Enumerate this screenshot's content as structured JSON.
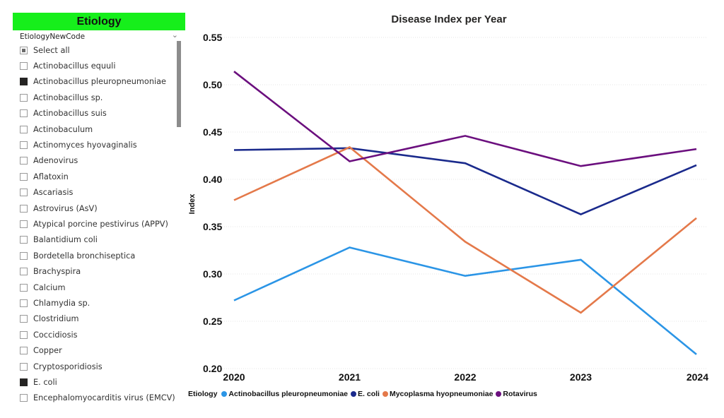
{
  "slicer": {
    "title": "Etiology",
    "field_name": "EtiologyNewCode",
    "expand_icon": "chevron-down-icon",
    "items": [
      {
        "label": "Select all",
        "state": "partial"
      },
      {
        "label": "Actinobacillus equuli",
        "state": "unchecked"
      },
      {
        "label": "Actinobacillus pleuropneumoniae",
        "state": "checked"
      },
      {
        "label": "Actinobacillus sp.",
        "state": "unchecked"
      },
      {
        "label": "Actinobacillus suis",
        "state": "unchecked"
      },
      {
        "label": "Actinobaculum",
        "state": "unchecked"
      },
      {
        "label": "Actinomyces hyovaginalis",
        "state": "unchecked"
      },
      {
        "label": "Adenovirus",
        "state": "unchecked"
      },
      {
        "label": "Aflatoxin",
        "state": "unchecked"
      },
      {
        "label": "Ascariasis",
        "state": "unchecked"
      },
      {
        "label": "Astrovirus (AsV)",
        "state": "unchecked"
      },
      {
        "label": "Atypical porcine pestivirus (APPV)",
        "state": "unchecked"
      },
      {
        "label": "Balantidium coli",
        "state": "unchecked"
      },
      {
        "label": "Bordetella bronchiseptica",
        "state": "unchecked"
      },
      {
        "label": "Brachyspira",
        "state": "unchecked"
      },
      {
        "label": "Calcium",
        "state": "unchecked"
      },
      {
        "label": "Chlamydia sp.",
        "state": "unchecked"
      },
      {
        "label": "Clostridium",
        "state": "unchecked"
      },
      {
        "label": "Coccidiosis",
        "state": "unchecked"
      },
      {
        "label": "Copper",
        "state": "unchecked"
      },
      {
        "label": "Cryptosporidiosis",
        "state": "unchecked"
      },
      {
        "label": "E. coli",
        "state": "checked"
      },
      {
        "label": "Encephalomyocarditis virus (EMCV)",
        "state": "unchecked"
      }
    ],
    "header_color": "#16ef1b"
  },
  "chart_data": {
    "type": "line",
    "title": "Disease Index per Year",
    "xlabel": "",
    "ylabel": "Index",
    "x": [
      "2020",
      "2021",
      "2022",
      "2023",
      "2024"
    ],
    "ylim": [
      0.2,
      0.55
    ],
    "yticks": [
      "0.55",
      "0.50",
      "0.45",
      "0.40",
      "0.35",
      "0.30",
      "0.25",
      "0.20"
    ],
    "ytick_values": [
      0.55,
      0.5,
      0.45,
      0.4,
      0.35,
      0.3,
      0.25,
      0.2
    ],
    "grid": true,
    "legend_title": "Etiology",
    "legend_position": "bottom-left",
    "series": [
      {
        "name": "Actinobacillus pleuropneumoniae",
        "color": "#2b95e6",
        "values": [
          0.272,
          0.328,
          0.298,
          0.315,
          0.215
        ]
      },
      {
        "name": "E. coli",
        "color": "#1a2a8c",
        "values": [
          0.431,
          0.433,
          0.417,
          0.363,
          0.415
        ]
      },
      {
        "name": "Mycoplasma hyopneumoniae",
        "color": "#e4794a",
        "values": [
          0.378,
          0.434,
          0.334,
          0.259,
          0.359
        ]
      },
      {
        "name": "Rotavirus",
        "color": "#6b0f7e",
        "values": [
          0.514,
          0.419,
          0.446,
          0.414,
          0.432
        ]
      }
    ]
  }
}
